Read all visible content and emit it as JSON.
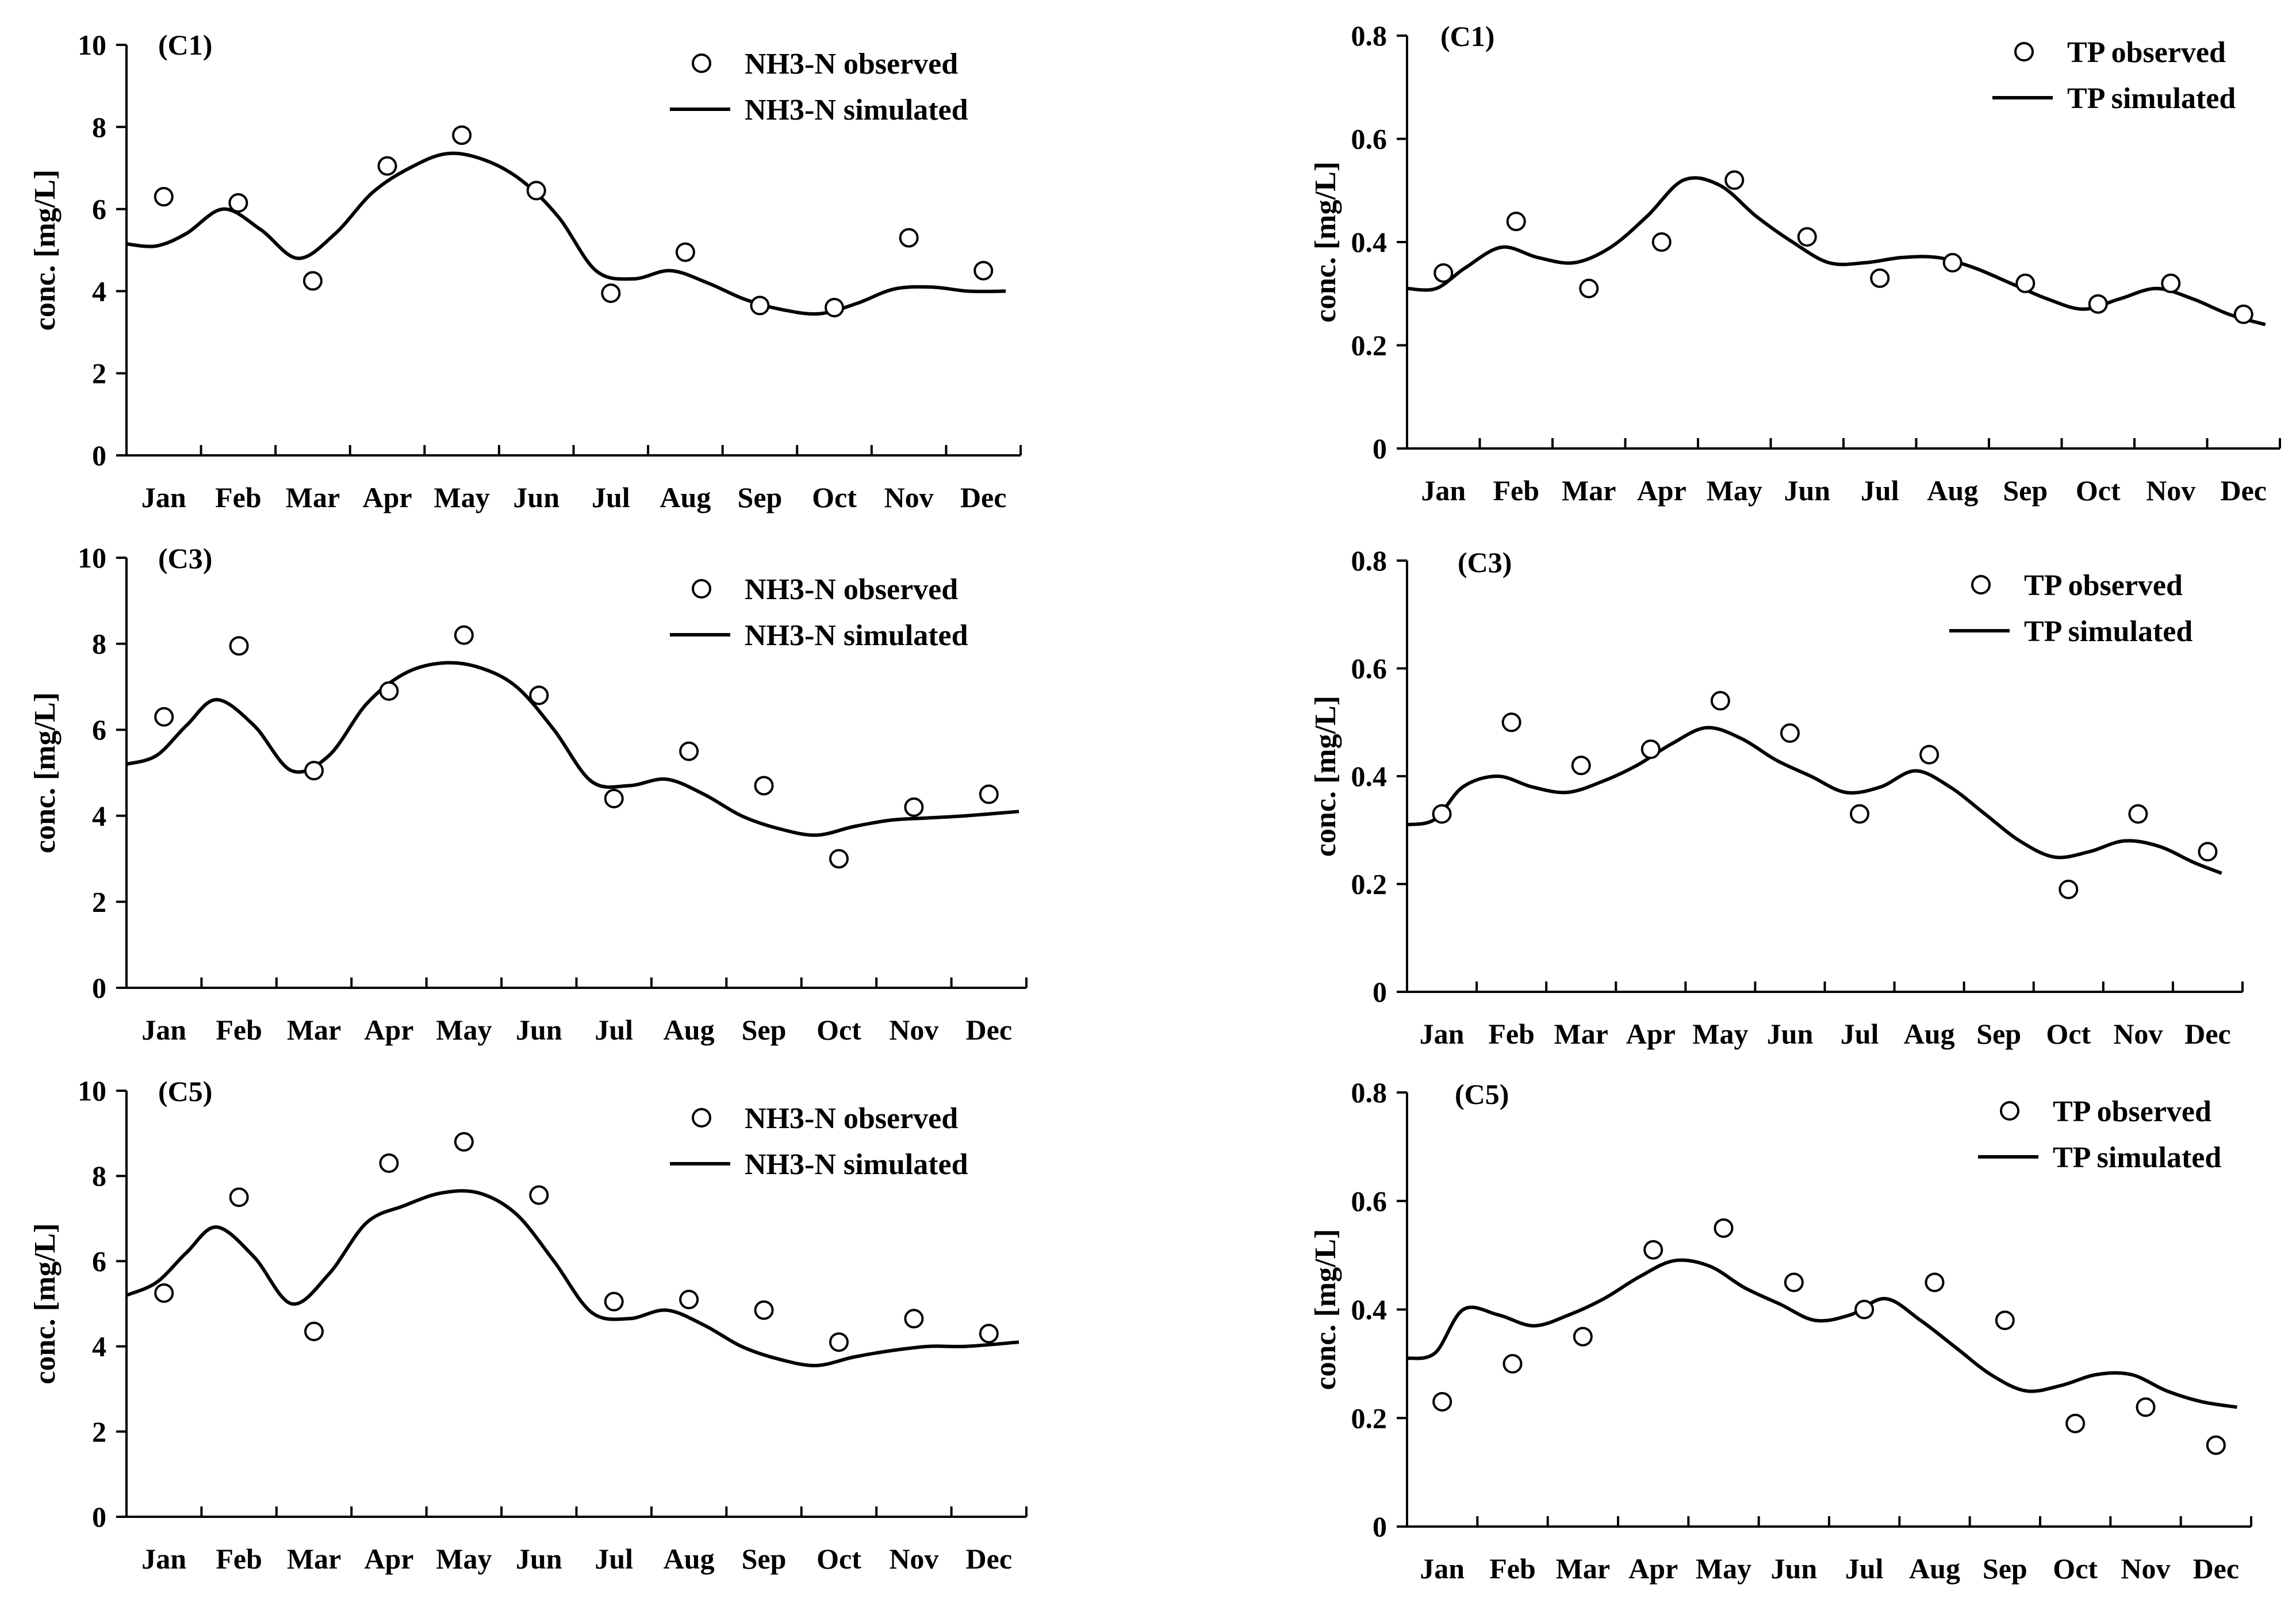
{
  "figure": {
    "months": [
      "Jan",
      "Feb",
      "Mar",
      "Apr",
      "May",
      "Jun",
      "Jul",
      "Aug",
      "Sep",
      "Oct",
      "Nov",
      "Dec"
    ]
  },
  "chart_data": [
    {
      "id": "nh3-c1",
      "type": "line",
      "panel_label": "(C1)",
      "ylabel": "conc. [mg/L]",
      "ylim": [
        0,
        10
      ],
      "yticks": [
        0,
        2,
        4,
        6,
        8,
        10
      ],
      "ytick_labels": [
        "0",
        "2",
        "4",
        "6",
        "8",
        "10"
      ],
      "legend": {
        "observed": "NH3-N observed",
        "simulated": "NH3-N simulated"
      },
      "observed": {
        "x": [
          0.5,
          1.5,
          2.5,
          3.5,
          4.5,
          5.5,
          6.5,
          7.5,
          8.5,
          9.5,
          10.5,
          11.5
        ],
        "y": [
          6.3,
          6.15,
          4.25,
          7.05,
          7.8,
          6.45,
          3.95,
          4.95,
          3.65,
          3.6,
          5.3,
          4.5
        ]
      },
      "simulated": {
        "x": [
          0,
          0.4,
          0.8,
          1.3,
          1.8,
          2.3,
          2.8,
          3.3,
          3.8,
          4.3,
          4.8,
          5.3,
          5.8,
          6.3,
          6.8,
          7.3,
          7.8,
          8.3,
          8.8,
          9.3,
          9.8,
          10.3,
          10.8,
          11.3,
          11.8
        ],
        "y": [
          5.15,
          5.1,
          5.4,
          6.0,
          5.5,
          4.8,
          5.4,
          6.4,
          7.0,
          7.35,
          7.2,
          6.7,
          5.8,
          4.5,
          4.3,
          4.5,
          4.2,
          3.8,
          3.55,
          3.45,
          3.7,
          4.05,
          4.1,
          4.0,
          4.0
        ]
      }
    },
    {
      "id": "tp-c1",
      "type": "line",
      "panel_label": "(C1)",
      "ylabel": "conc. [mg/L]",
      "ylim": [
        0,
        0.8
      ],
      "yticks": [
        0,
        0.2,
        0.4,
        0.6,
        0.8
      ],
      "ytick_labels": [
        "0",
        "0.2",
        "0.4",
        "0.6",
        "0.8"
      ],
      "legend": {
        "observed": "TP observed",
        "simulated": "TP simulated"
      },
      "observed": {
        "x": [
          0.5,
          1.5,
          2.5,
          3.5,
          4.5,
          5.5,
          6.5,
          7.5,
          8.5,
          9.5,
          10.5,
          11.5
        ],
        "y": [
          0.34,
          0.44,
          0.31,
          0.4,
          0.52,
          0.41,
          0.33,
          0.36,
          0.32,
          0.28,
          0.32,
          0.26
        ]
      },
      "simulated": {
        "x": [
          0,
          0.4,
          0.8,
          1.3,
          1.8,
          2.3,
          2.8,
          3.3,
          3.8,
          4.3,
          4.8,
          5.3,
          5.8,
          6.3,
          6.8,
          7.3,
          7.8,
          8.3,
          8.8,
          9.3,
          9.8,
          10.3,
          10.8,
          11.3,
          11.8
        ],
        "y": [
          0.31,
          0.31,
          0.35,
          0.39,
          0.37,
          0.36,
          0.39,
          0.45,
          0.52,
          0.51,
          0.45,
          0.4,
          0.36,
          0.36,
          0.37,
          0.37,
          0.35,
          0.32,
          0.29,
          0.27,
          0.29,
          0.31,
          0.29,
          0.26,
          0.24
        ]
      }
    },
    {
      "id": "nh3-c3",
      "type": "line",
      "panel_label": "(C3)",
      "ylabel": "conc. [mg/L]",
      "ylim": [
        0,
        10
      ],
      "yticks": [
        0,
        2,
        4,
        6,
        8,
        10
      ],
      "ytick_labels": [
        "0",
        "2",
        "4",
        "6",
        "8",
        "10"
      ],
      "legend": {
        "observed": "NH3-N observed",
        "simulated": "NH3-N simulated"
      },
      "observed": {
        "x": [
          0.5,
          1.5,
          2.5,
          3.5,
          4.5,
          5.5,
          6.5,
          7.5,
          8.5,
          9.5,
          10.5,
          11.5
        ],
        "y": [
          6.3,
          7.95,
          5.05,
          6.9,
          8.2,
          6.8,
          4.4,
          5.5,
          4.7,
          3.0,
          4.2,
          4.5
        ]
      },
      "simulated": {
        "x": [
          0,
          0.4,
          0.8,
          1.2,
          1.7,
          2.2,
          2.7,
          3.2,
          3.7,
          4.2,
          4.7,
          5.2,
          5.7,
          6.2,
          6.7,
          7.2,
          7.7,
          8.2,
          8.7,
          9.2,
          9.7,
          10.2,
          10.7,
          11.2,
          11.9
        ],
        "y": [
          5.2,
          5.4,
          6.1,
          6.7,
          6.1,
          5.05,
          5.4,
          6.6,
          7.3,
          7.55,
          7.45,
          7.0,
          6.0,
          4.8,
          4.7,
          4.85,
          4.5,
          4.0,
          3.7,
          3.55,
          3.75,
          3.9,
          3.95,
          4.0,
          4.1
        ]
      }
    },
    {
      "id": "tp-c3",
      "type": "line",
      "panel_label": "(C3)",
      "ylabel": "conc. [mg/L]",
      "ylim": [
        0,
        0.8
      ],
      "yticks": [
        0,
        0.2,
        0.4,
        0.6,
        0.8
      ],
      "ytick_labels": [
        "0",
        "0.2",
        "0.4",
        "0.6",
        "0.8"
      ],
      "legend": {
        "observed": "TP observed",
        "simulated": "TP simulated"
      },
      "observed": {
        "x": [
          0.5,
          1.5,
          2.5,
          3.5,
          4.5,
          5.5,
          6.5,
          7.5,
          8.5,
          9.5,
          10.5,
          11.5
        ],
        "y": [
          0.33,
          0.5,
          0.42,
          0.45,
          0.54,
          0.48,
          0.33,
          0.44,
          null,
          0.19,
          0.33,
          0.26
        ]
      },
      "simulated": {
        "x": [
          0,
          0.4,
          0.8,
          1.3,
          1.8,
          2.3,
          2.8,
          3.3,
          3.8,
          4.3,
          4.8,
          5.3,
          5.8,
          6.3,
          6.8,
          7.3,
          7.8,
          8.3,
          8.8,
          9.3,
          9.8,
          10.3,
          10.8,
          11.3,
          11.7
        ],
        "y": [
          0.31,
          0.32,
          0.38,
          0.4,
          0.38,
          0.37,
          0.39,
          0.42,
          0.46,
          0.49,
          0.47,
          0.43,
          0.4,
          0.37,
          0.38,
          0.41,
          0.38,
          0.33,
          0.28,
          0.25,
          0.26,
          0.28,
          0.27,
          0.24,
          0.22
        ]
      }
    },
    {
      "id": "nh3-c5",
      "type": "line",
      "panel_label": "(C5)",
      "ylabel": "conc. [mg/L]",
      "ylim": [
        0,
        10
      ],
      "yticks": [
        0,
        2,
        4,
        6,
        8,
        10
      ],
      "ytick_labels": [
        "0",
        "2",
        "4",
        "6",
        "8",
        "10"
      ],
      "legend": {
        "observed": "NH3-N observed",
        "simulated": "NH3-N simulated"
      },
      "observed": {
        "x": [
          0.5,
          1.5,
          2.5,
          3.5,
          4.5,
          5.5,
          6.5,
          7.5,
          8.5,
          9.5,
          10.5,
          11.5
        ],
        "y": [
          5.25,
          7.5,
          4.35,
          8.3,
          8.8,
          7.55,
          5.05,
          5.1,
          4.85,
          4.1,
          4.65,
          4.3
        ]
      },
      "simulated": {
        "x": [
          0,
          0.4,
          0.8,
          1.2,
          1.7,
          2.2,
          2.7,
          3.2,
          3.7,
          4.2,
          4.7,
          5.2,
          5.7,
          6.2,
          6.7,
          7.2,
          7.7,
          8.2,
          8.7,
          9.2,
          9.7,
          10.2,
          10.7,
          11.2,
          11.9
        ],
        "y": [
          5.2,
          5.5,
          6.2,
          6.8,
          6.1,
          5.0,
          5.7,
          6.9,
          7.3,
          7.6,
          7.6,
          7.1,
          6.0,
          4.8,
          4.65,
          4.85,
          4.5,
          4.0,
          3.7,
          3.55,
          3.75,
          3.9,
          4.0,
          4.0,
          4.1
        ]
      }
    },
    {
      "id": "tp-c5",
      "type": "line",
      "panel_label": "(C5)",
      "ylabel": "conc. [mg/L]",
      "ylim": [
        0,
        0.8
      ],
      "yticks": [
        0,
        0.2,
        0.4,
        0.6,
        0.8
      ],
      "ytick_labels": [
        "0",
        "0.2",
        "0.4",
        "0.6",
        "0.8"
      ],
      "legend": {
        "observed": "TP observed",
        "simulated": "TP simulated"
      },
      "observed": {
        "x": [
          0.5,
          1.5,
          2.5,
          3.5,
          4.5,
          5.5,
          6.5,
          7.5,
          8.5,
          9.5,
          10.5,
          11.5
        ],
        "y": [
          0.23,
          0.3,
          0.35,
          0.51,
          0.55,
          0.45,
          0.4,
          0.45,
          0.38,
          0.19,
          0.22,
          0.15
        ]
      },
      "simulated": {
        "x": [
          0,
          0.4,
          0.8,
          1.3,
          1.8,
          2.3,
          2.8,
          3.3,
          3.8,
          4.3,
          4.8,
          5.3,
          5.8,
          6.3,
          6.8,
          7.3,
          7.8,
          8.3,
          8.8,
          9.3,
          9.8,
          10.3,
          10.8,
          11.3,
          11.8
        ],
        "y": [
          0.31,
          0.32,
          0.4,
          0.39,
          0.37,
          0.39,
          0.42,
          0.46,
          0.49,
          0.48,
          0.44,
          0.41,
          0.38,
          0.39,
          0.42,
          0.38,
          0.33,
          0.28,
          0.25,
          0.26,
          0.28,
          0.28,
          0.25,
          0.23,
          0.22
        ]
      }
    }
  ]
}
